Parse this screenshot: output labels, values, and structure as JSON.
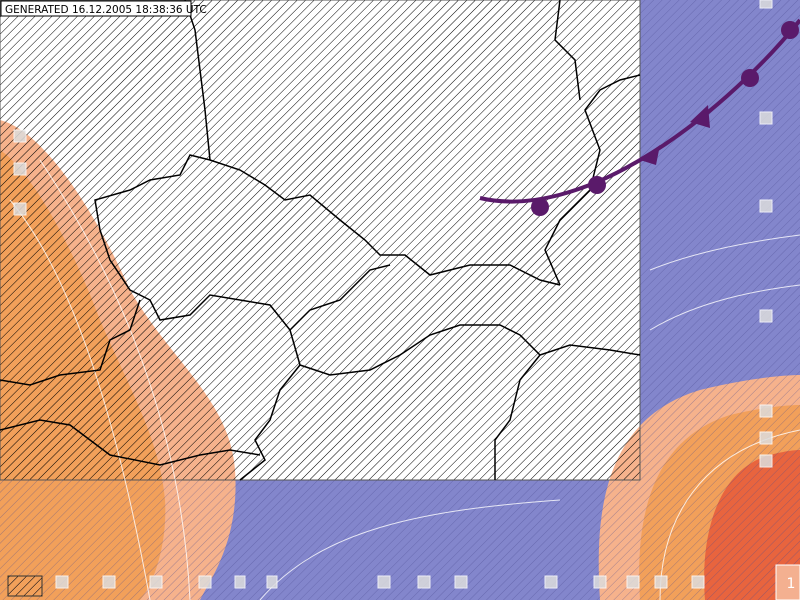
{
  "header": {
    "generated": "GENERATED 16.12.2005 18:38:36 UTC"
  },
  "corner_label": "1"
}
